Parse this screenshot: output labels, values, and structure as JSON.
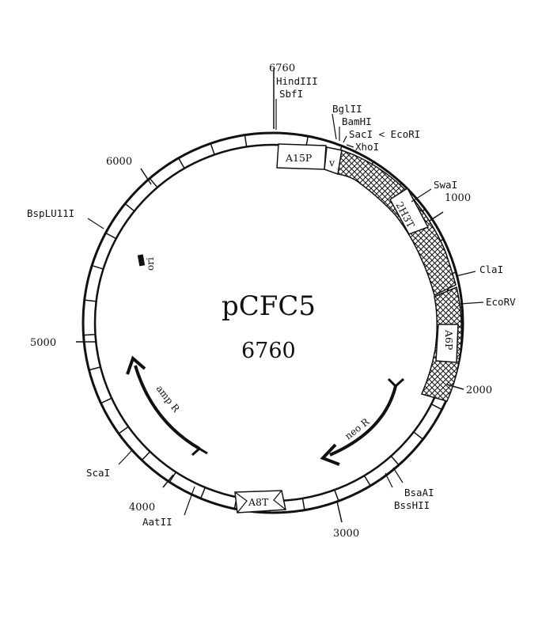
{
  "plasmid": {
    "name": "pCFC5",
    "size": "6760"
  },
  "coordinates": [
    {
      "text": "6760"
    },
    {
      "text": "1000"
    },
    {
      "text": "2000"
    },
    {
      "text": "3000"
    },
    {
      "text": "4000"
    },
    {
      "text": "5000"
    },
    {
      "text": "6000"
    }
  ],
  "sites": [
    {
      "text": "HindIII"
    },
    {
      "text": "SbfI"
    },
    {
      "text": "BglII"
    },
    {
      "text": "BamHI"
    },
    {
      "text": "SacI < EcoRI"
    },
    {
      "text": "XhoI"
    },
    {
      "text": "SwaI"
    },
    {
      "text": "ClaI"
    },
    {
      "text": "EcoRV"
    },
    {
      "text": "BsaAI"
    },
    {
      "text": "BssHII"
    },
    {
      "text": "AatII"
    },
    {
      "text": "ScaI"
    },
    {
      "text": "BspLU11I"
    }
  ],
  "segments": {
    "a15p": "A15P",
    "v": "v",
    "h2h3t": "2H3T",
    "a6p": "A6P",
    "a8t": "A8T"
  },
  "genes": {
    "ori": "ori",
    "neo": "neo R",
    "amp": "amp R"
  }
}
